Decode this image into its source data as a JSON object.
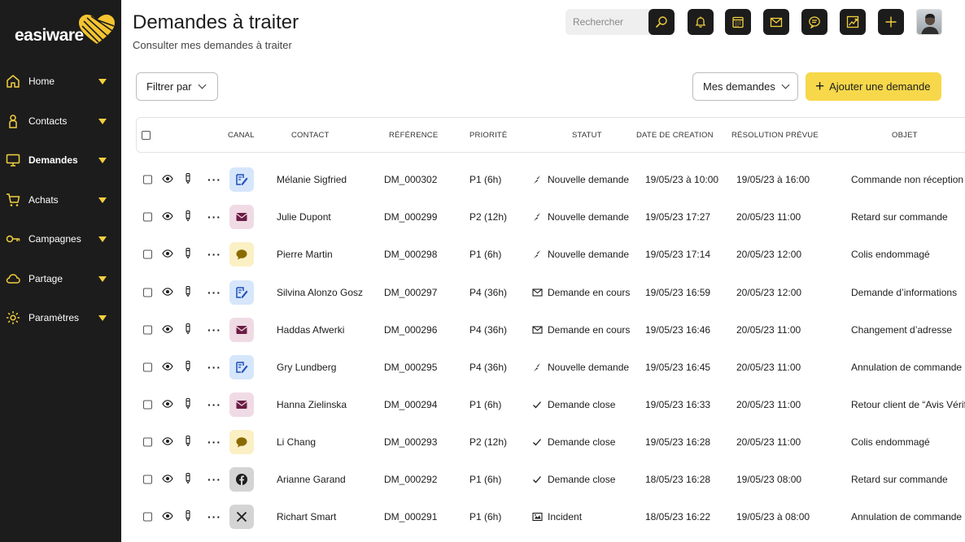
{
  "brand": {
    "name": "easiware"
  },
  "sidebar": {
    "items": [
      {
        "label": "Home",
        "icon": "home-icon"
      },
      {
        "label": "Contacts",
        "icon": "person-icon"
      },
      {
        "label": "Demandes",
        "icon": "monitor-icon",
        "active": true
      },
      {
        "label": "Achats",
        "icon": "cart-icon"
      },
      {
        "label": "Campagnes",
        "icon": "key-icon"
      },
      {
        "label": "Partage",
        "icon": "cloud-icon"
      },
      {
        "label": "Paramètres",
        "icon": "gear-icon"
      }
    ]
  },
  "header": {
    "title": "Demandes à traiter",
    "subtitle": "Consulter mes demandes à traiter",
    "search_placeholder": "Rechercher"
  },
  "toolbar": {
    "filter_label": "Filtrer par",
    "view_label": "Mes demandes",
    "add_label": "Ajouter une demande"
  },
  "table": {
    "columns": [
      "CANAL",
      "CONTACT",
      "RÉFÉRENCE",
      "PRIORITÉ",
      "STATUT",
      "DATE DE CREATION",
      "RÉSOLUTION PRÉVUE",
      "OBJET"
    ],
    "rows": [
      {
        "channel": "form",
        "contact": "Mélanie Sigfried",
        "ref": "DM_000302",
        "prio": "P1 (6h)",
        "status": "Nouvelle demande",
        "status_icon": "new",
        "created": "19/05/23 à 10:00",
        "resolution": "19/05/23 à 16:00",
        "object": "Commande non réception"
      },
      {
        "channel": "mail",
        "contact": "Julie Dupont",
        "ref": "DM_000299",
        "prio": "P2 (12h)",
        "status": "Nouvelle demande",
        "status_icon": "new",
        "created": "19/05/23 17:27",
        "resolution": "20/05/23 11:00",
        "object": "Retard sur commande"
      },
      {
        "channel": "chat",
        "contact": "Pierre Martin",
        "ref": "DM_000298",
        "prio": "P1 (6h)",
        "status": "Nouvelle demande",
        "status_icon": "new",
        "created": "19/05/23 17:14",
        "resolution": "20/05/23 12:00",
        "object": "Colis endommagé"
      },
      {
        "channel": "form",
        "contact": "Silvina Alonzo Gosz",
        "ref": "DM_000297",
        "prio": "P4 (36h)",
        "status": "Demande en cours",
        "status_icon": "progress",
        "created": "19/05/23 16:59",
        "resolution": "20/05/23 12:00",
        "object": "Demande d’informations"
      },
      {
        "channel": "mail",
        "contact": "Haddas Afwerki",
        "ref": "DM_000296",
        "prio": "P4 (36h)",
        "status": "Demande en cours",
        "status_icon": "progress",
        "created": "19/05/23 16:46",
        "resolution": "20/05/23 11:00",
        "object": "Changement d’adresse"
      },
      {
        "channel": "form",
        "contact": "Gry Lundberg",
        "ref": "DM_000295",
        "prio": "P4 (36h)",
        "status": "Nouvelle demande",
        "status_icon": "new",
        "created": "19/05/23 16:45",
        "resolution": "20/05/23 11:00",
        "object": "Annulation de commande"
      },
      {
        "channel": "mail",
        "contact": "Hanna Zielinska",
        "ref": "DM_000294",
        "prio": "P1 (6h)",
        "status": "Demande close",
        "status_icon": "closed",
        "created": "19/05/23 16:33",
        "resolution": "20/05/23 11:00",
        "object": "Retour client de “Avis Vérifiés”"
      },
      {
        "channel": "chat",
        "contact": "Li Chang",
        "ref": "DM_000293",
        "prio": "P2 (12h)",
        "status": "Demande close",
        "status_icon": "closed",
        "created": "19/05/23 16:28",
        "resolution": "20/05/23 11:00",
        "object": "Colis endommagé"
      },
      {
        "channel": "fb",
        "contact": "Arianne Garand",
        "ref": "DM_000292",
        "prio": "P1 (6h)",
        "status": "Demande close",
        "status_icon": "closed",
        "created": "18/05/23 16:28",
        "resolution": "19/05/23 08:00",
        "object": "Retard sur commande"
      },
      {
        "channel": "x",
        "contact": "Richart Smart",
        "ref": "DM_000291",
        "prio": "P1 (6h)",
        "status": "Incident",
        "status_icon": "incident",
        "created": "18/05/23 16:22",
        "resolution": "19/05/23 à 08:00",
        "object": "Annulation de commande"
      }
    ]
  },
  "colors": {
    "accent": "#f7d84b",
    "sidebar": "#1c1c1c",
    "heart": "#f4c430"
  }
}
